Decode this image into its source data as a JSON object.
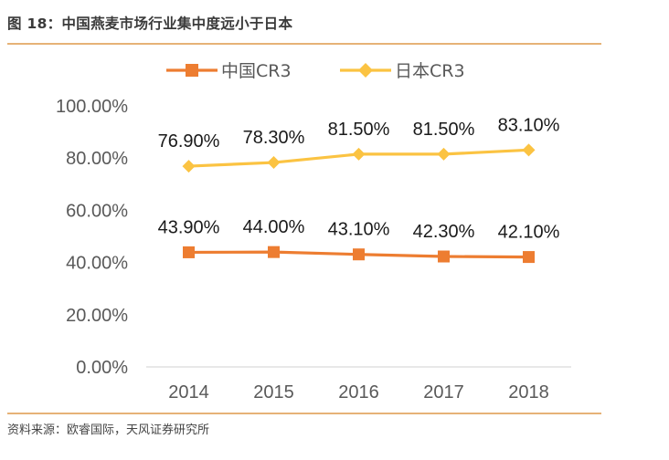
{
  "figure": {
    "title": "图 18：中国燕麦市场行业集中度远小于日本",
    "source": "资料来源：欧睿国际，天风证券研究所"
  },
  "colors": {
    "china": "#ed7d31",
    "japan": "#fbc342",
    "rule": "#e6b277",
    "axis": "#d9d9d9"
  },
  "chart_data": {
    "type": "line",
    "categories": [
      "2014",
      "2015",
      "2016",
      "2017",
      "2018"
    ],
    "series": [
      {
        "name": "中国CR3",
        "values": [
          43.9,
          44.0,
          43.1,
          42.3,
          42.1
        ],
        "labels": [
          "43.90%",
          "44.00%",
          "43.10%",
          "42.30%",
          "42.10%"
        ],
        "marker": "square"
      },
      {
        "name": "日本CR3",
        "values": [
          76.9,
          78.3,
          81.5,
          81.5,
          83.1
        ],
        "labels": [
          "76.90%",
          "78.30%",
          "81.50%",
          "81.50%",
          "83.10%"
        ],
        "marker": "diamond"
      }
    ],
    "ylim": [
      0,
      100
    ],
    "y_ticks": [
      0,
      20,
      40,
      60,
      80,
      100
    ],
    "y_tick_labels": [
      "0.00%",
      "20.00%",
      "40.00%",
      "60.00%",
      "80.00%",
      "100.00%"
    ],
    "grid": false,
    "legend": "top-center"
  }
}
